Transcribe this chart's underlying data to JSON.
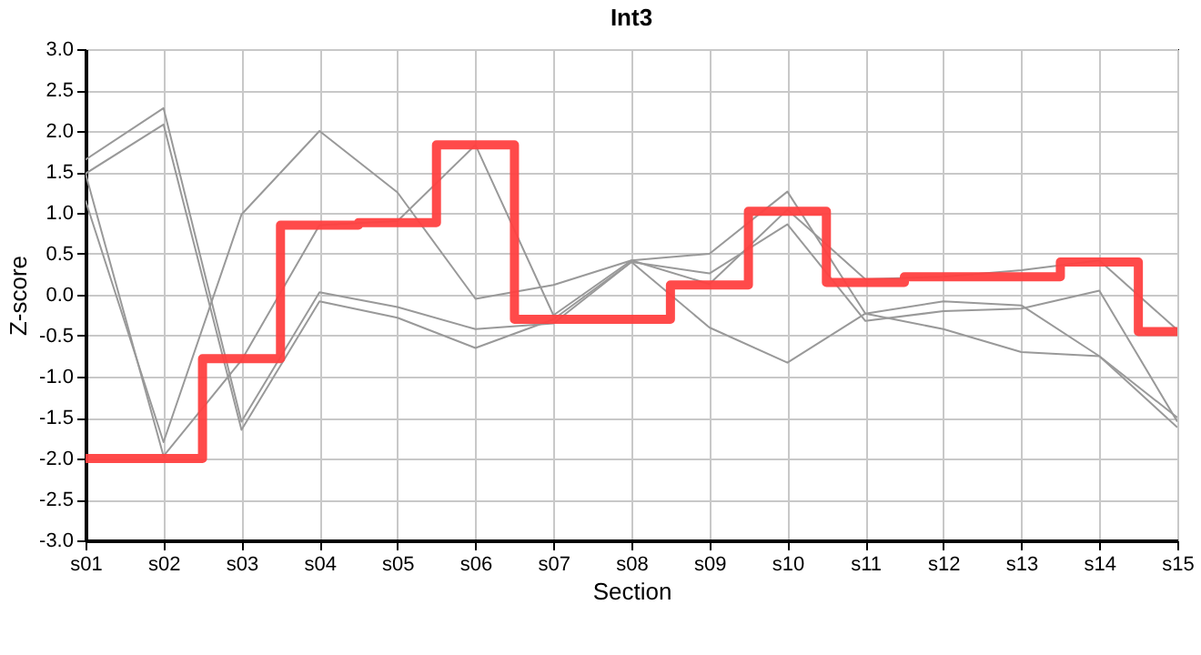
{
  "chart_data": {
    "type": "line",
    "title": "Int3",
    "xlabel": "Section",
    "ylabel": "Z-score",
    "categories": [
      "s01",
      "s02",
      "s03",
      "s04",
      "s05",
      "s06",
      "s07",
      "s08",
      "s09",
      "s10",
      "s11",
      "s12",
      "s13",
      "s14",
      "s15"
    ],
    "series": [
      {
        "color": "#999999",
        "values": [
          1.15,
          -1.8,
          0.98,
          2.0,
          1.25,
          -0.05,
          0.12,
          0.42,
          0.5,
          1.26,
          -0.23,
          -0.08,
          -0.13,
          -0.75,
          -1.5
        ]
      },
      {
        "color": "#999999",
        "values": [
          1.48,
          -1.97,
          -0.8,
          0.85,
          0.9,
          1.83,
          -0.25,
          0.42,
          0.13,
          1.04,
          0.19,
          0.22,
          0.3,
          0.42,
          -0.43
        ]
      },
      {
        "color": "#999999",
        "values": [
          1.65,
          2.28,
          -1.55,
          0.03,
          -0.15,
          -0.42,
          -0.35,
          0.4,
          0.26,
          0.86,
          -0.32,
          -0.2,
          -0.17,
          0.05,
          -1.55
        ]
      },
      {
        "color": "#999999",
        "values": [
          1.48,
          2.08,
          -1.65,
          -0.08,
          -0.28,
          -0.65,
          -0.3,
          0.4,
          -0.4,
          -0.83,
          -0.23,
          -0.42,
          -0.7,
          -0.75,
          -1.62
        ]
      },
      {
        "type": "step",
        "color": "#ff4040",
        "values": [
          -2.0,
          -2.0,
          -0.78,
          0.85,
          0.88,
          1.83,
          -0.3,
          -0.3,
          0.12,
          1.02,
          0.15,
          0.22,
          0.22,
          0.4,
          -0.45
        ]
      }
    ],
    "ylim": [
      -3,
      3
    ],
    "yticks": [
      {
        "value": -3,
        "label": "-3.0"
      },
      {
        "value": -2.5,
        "label": "-2.5"
      },
      {
        "value": -2,
        "label": "-2.0"
      },
      {
        "value": -1.5,
        "label": "-1.5"
      },
      {
        "value": -1,
        "label": "-1.0"
      },
      {
        "value": -0.5,
        "label": "-0.5"
      },
      {
        "value": 0,
        "label": "0.0"
      },
      {
        "value": 0.5,
        "label": "0.5"
      },
      {
        "value": 1,
        "label": "1.0"
      },
      {
        "value": 1.5,
        "label": "1.5"
      },
      {
        "value": 2,
        "label": "2.0"
      },
      {
        "value": 2.5,
        "label": "2.5"
      },
      {
        "value": 3,
        "label": "3.0"
      }
    ],
    "grid": true,
    "marker": "none",
    "line_style": "solid"
  }
}
